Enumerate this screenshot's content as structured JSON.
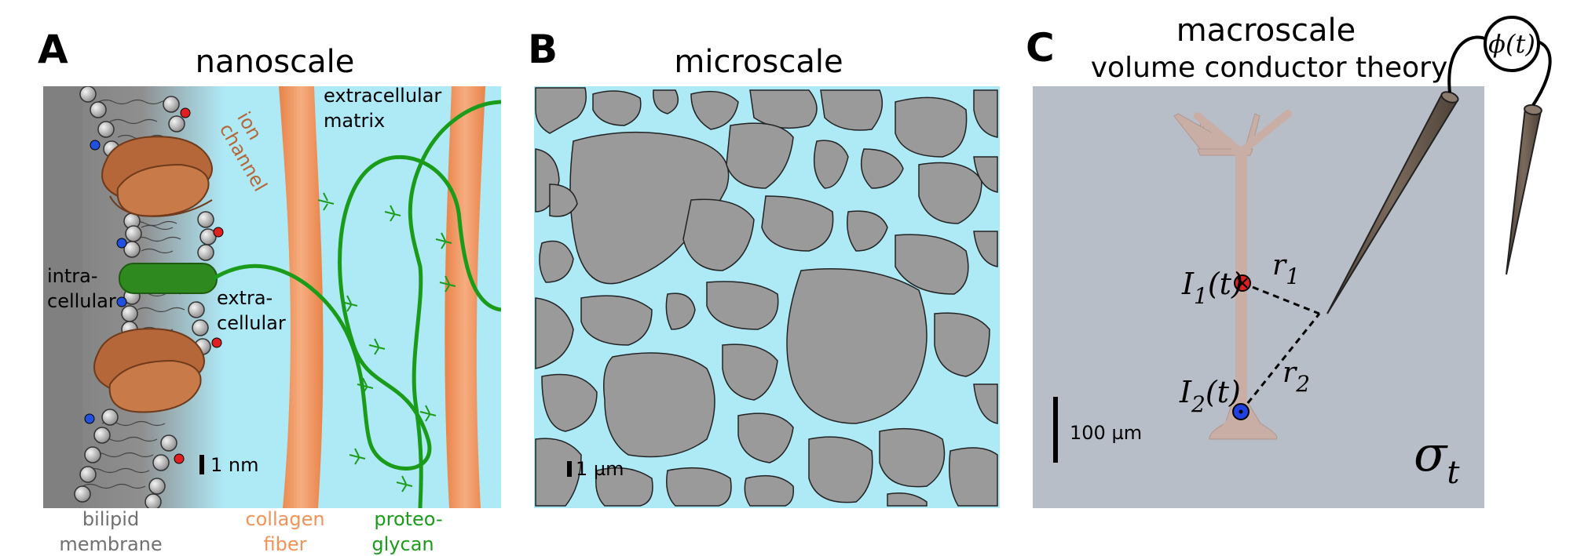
{
  "panel_a": {
    "letter": "A",
    "title": "nanoscale",
    "labels": {
      "ion_channel_1": "ion",
      "ion_channel_2": "channel",
      "ecm_1": "extracellular",
      "ecm_2": "matrix",
      "intra_1": "intra-",
      "intra_2": "cellular",
      "extra_1": "extra-",
      "extra_2": "cellular",
      "scale": "1 nm",
      "bilipid_1": "bilipid",
      "bilipid_2": "membrane",
      "collagen_1": "collagen",
      "collagen_2": "fiber",
      "proteo_1": "proteo-",
      "proteo_2": "glycan"
    },
    "charge_plus": "+",
    "charge_minus": "−"
  },
  "panel_b": {
    "letter": "B",
    "title": "microscale",
    "scale": "1 µm"
  },
  "panel_c": {
    "letter": "C",
    "title_1": "macroscale",
    "title_2": "volume conductor theory",
    "phi": "ϕ(t)",
    "i1": "I",
    "i1_sub": "1",
    "i1_arg": "(t)",
    "i2": "I",
    "i2_sub": "2",
    "i2_arg": "(t)",
    "r1": "r",
    "r1_sub": "1",
    "r2": "r",
    "r2_sub": "2",
    "sigma": "σ",
    "sigma_sub": "t",
    "scale": "100 µm"
  },
  "colors": {
    "extracellular": "#aee9f6",
    "membrane_gray": "#8a8a8a",
    "ion_channel": "#b5673a",
    "collagen": "#f0935a",
    "proteoglycan": "#1a9c1a",
    "cell_gray": "#9a9a9a",
    "macro_bg": "#b8bec8",
    "neuron": "#c9aea6",
    "electrode": "#6b5b4e",
    "positive": "#e02020",
    "negative": "#2050e0"
  }
}
